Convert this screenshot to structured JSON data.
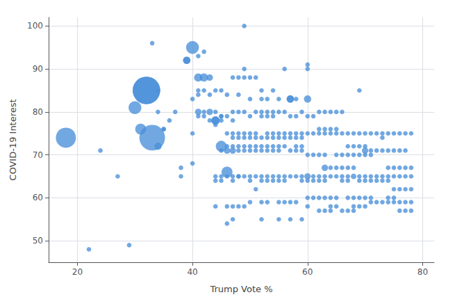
{
  "chart_data": {
    "type": "scatter",
    "xlabel": "Trump Vote %",
    "ylabel": "COVID-19 Interest",
    "xlim": [
      15,
      82
    ],
    "ylim": [
      45,
      102
    ],
    "xticks": [
      20,
      40,
      60,
      80
    ],
    "yticks": [
      50,
      60,
      70,
      80,
      90,
      100
    ],
    "grid": true,
    "color": "#4a90d9",
    "x": [
      18,
      22,
      24,
      27,
      29,
      30,
      31,
      32,
      32,
      33,
      33,
      34,
      34,
      34,
      35,
      35,
      36,
      37,
      38,
      38,
      39,
      39,
      40,
      40,
      40,
      40,
      41,
      41,
      41,
      41,
      41,
      41,
      42,
      42,
      42,
      42,
      42,
      43,
      43,
      43,
      43,
      44,
      44,
      44,
      44,
      44,
      44,
      44,
      44,
      45,
      45,
      45,
      45,
      45,
      45,
      45,
      45,
      46,
      46,
      46,
      46,
      46,
      46,
      46,
      46,
      46,
      47,
      47,
      47,
      47,
      47,
      47,
      47,
      47,
      47,
      47,
      47,
      48,
      48,
      48,
      48,
      48,
      48,
      48,
      48,
      48,
      48,
      49,
      49,
      49,
      49,
      49,
      49,
      49,
      49,
      49,
      49,
      50,
      50,
      50,
      50,
      50,
      50,
      50,
      50,
      50,
      50,
      51,
      51,
      51,
      51,
      51,
      51,
      51,
      51,
      52,
      52,
      52,
      52,
      52,
      52,
      52,
      52,
      52,
      52,
      52,
      53,
      53,
      53,
      53,
      53,
      53,
      53,
      53,
      53,
      53,
      54,
      54,
      54,
      54,
      54,
      54,
      54,
      54,
      54,
      55,
      55,
      55,
      55,
      55,
      55,
      55,
      55,
      55,
      55,
      56,
      56,
      56,
      56,
      56,
      56,
      56,
      56,
      57,
      57,
      57,
      57,
      57,
      57,
      57,
      57,
      57,
      58,
      58,
      58,
      58,
      58,
      58,
      58,
      58,
      59,
      59,
      59,
      59,
      59,
      59,
      59,
      59,
      60,
      60,
      60,
      60,
      60,
      60,
      60,
      60,
      60,
      60,
      61,
      61,
      61,
      61,
      61,
      61,
      62,
      62,
      62,
      62,
      62,
      62,
      62,
      62,
      63,
      63,
      63,
      63,
      63,
      63,
      63,
      63,
      63,
      64,
      64,
      64,
      64,
      64,
      64,
      64,
      64,
      65,
      65,
      65,
      65,
      65,
      65,
      65,
      65,
      66,
      66,
      66,
      66,
      66,
      66,
      66,
      67,
      67,
      67,
      67,
      67,
      67,
      67,
      67,
      68,
      68,
      68,
      68,
      68,
      68,
      68,
      68,
      69,
      69,
      69,
      69,
      69,
      69,
      69,
      69,
      70,
      70,
      70,
      70,
      70,
      70,
      70,
      70,
      71,
      71,
      71,
      71,
      71,
      71,
      71,
      72,
      72,
      72,
      72,
      72,
      73,
      73,
      73,
      73,
      73,
      73,
      74,
      74,
      74,
      74,
      74,
      74,
      74,
      75,
      75,
      75,
      75,
      75,
      75,
      75,
      76,
      76,
      76,
      76,
      76,
      76,
      76,
      77,
      77,
      77,
      77,
      77,
      77,
      77,
      78,
      78,
      78,
      78,
      78,
      78
    ],
    "values": [
      74,
      48,
      71,
      65,
      49,
      81,
      76,
      85,
      85,
      74,
      96,
      85,
      80,
      72,
      76,
      76,
      78,
      80,
      67,
      65,
      92,
      92,
      95,
      83,
      75,
      68,
      93,
      88,
      85,
      84,
      80,
      79,
      94,
      88,
      85,
      80,
      79,
      88,
      84,
      80,
      78,
      85,
      80,
      78,
      78,
      77,
      65,
      64,
      58,
      85,
      79,
      79,
      78,
      72,
      71,
      65,
      64,
      84,
      79,
      75,
      72,
      71,
      66,
      65,
      58,
      54,
      88,
      80,
      78,
      75,
      74,
      72,
      71,
      65,
      64,
      58,
      55,
      88,
      84,
      80,
      75,
      74,
      72,
      71,
      65,
      65,
      58,
      100,
      90,
      88,
      80,
      75,
      74,
      72,
      71,
      65,
      58,
      88,
      83,
      79,
      75,
      74,
      72,
      71,
      65,
      64,
      59,
      88,
      80,
      75,
      74,
      72,
      71,
      65,
      62,
      83,
      80,
      79,
      85,
      74,
      72,
      71,
      65,
      64,
      59,
      55,
      83,
      80,
      79,
      75,
      74,
      72,
      71,
      65,
      64,
      59,
      85,
      80,
      79,
      75,
      74,
      72,
      71,
      65,
      64,
      83,
      80,
      75,
      74,
      72,
      71,
      65,
      64,
      59,
      55,
      90,
      80,
      75,
      74,
      72,
      65,
      64,
      59,
      83,
      83,
      79,
      75,
      74,
      71,
      65,
      59,
      55,
      83,
      79,
      75,
      74,
      72,
      71,
      65,
      59,
      80,
      75,
      74,
      72,
      71,
      65,
      64,
      55,
      91,
      90,
      83,
      79,
      75,
      70,
      65,
      64,
      60,
      58,
      79,
      75,
      70,
      65,
      64,
      60,
      80,
      76,
      75,
      70,
      65,
      64,
      60,
      57,
      80,
      76,
      75,
      70,
      67,
      65,
      64,
      60,
      57,
      80,
      76,
      75,
      67,
      65,
      60,
      58,
      57,
      80,
      76,
      75,
      70,
      67,
      65,
      60,
      58,
      80,
      75,
      70,
      67,
      65,
      64,
      57,
      75,
      72,
      70,
      67,
      65,
      64,
      60,
      57,
      75,
      72,
      70,
      67,
      65,
      60,
      58,
      57,
      85,
      75,
      72,
      70,
      65,
      64,
      60,
      58,
      75,
      72,
      71,
      70,
      65,
      64,
      60,
      58,
      75,
      71,
      70,
      65,
      64,
      60,
      59,
      75,
      71,
      65,
      64,
      59,
      75,
      74,
      71,
      65,
      64,
      59,
      75,
      71,
      67,
      65,
      64,
      60,
      59,
      75,
      71,
      67,
      65,
      62,
      60,
      59,
      75,
      71,
      67,
      65,
      62,
      59,
      57,
      75,
      71,
      67,
      65,
      62,
      59,
      57,
      75,
      67,
      65,
      62,
      59,
      57
    ],
    "sizes": [
      22,
      5,
      5,
      5,
      5,
      14,
      12,
      30,
      30,
      28,
      5,
      5,
      5,
      8,
      5,
      5,
      5,
      5,
      5,
      5,
      8,
      8,
      14,
      5,
      5,
      5,
      5,
      9,
      5,
      5,
      7,
      5,
      5,
      9,
      5,
      5,
      5,
      7,
      5,
      7,
      5,
      5,
      5,
      9,
      9,
      5,
      5,
      5,
      5,
      5,
      5,
      5,
      5,
      12,
      5,
      5,
      5,
      5,
      5,
      5,
      5,
      7,
      12,
      5,
      5,
      5,
      5,
      5,
      5,
      5,
      5,
      5,
      7,
      5,
      5,
      5,
      5,
      5,
      5,
      5,
      5,
      5,
      5,
      5,
      5,
      5,
      5,
      5,
      5,
      5,
      5,
      5,
      5,
      5,
      5,
      5,
      5,
      5,
      5,
      5,
      5,
      5,
      5,
      5,
      5,
      5,
      5,
      5,
      5,
      5,
      5,
      5,
      5,
      5,
      5,
      5,
      5,
      5,
      5,
      5,
      5,
      5,
      5,
      5,
      5,
      5,
      5,
      5,
      5,
      5,
      5,
      5,
      5,
      5,
      5,
      5,
      5,
      5,
      5,
      5,
      5,
      5,
      5,
      5,
      5,
      5,
      5,
      5,
      5,
      5,
      5,
      5,
      5,
      5,
      5,
      5,
      5,
      5,
      5,
      5,
      5,
      5,
      5,
      8,
      8,
      5,
      5,
      5,
      5,
      5,
      5,
      5,
      5,
      5,
      5,
      5,
      5,
      5,
      5,
      5,
      5,
      5,
      5,
      5,
      5,
      5,
      5,
      5,
      5,
      5,
      8,
      5,
      5,
      5,
      7,
      5,
      5,
      5,
      5,
      5,
      5,
      5,
      5,
      5,
      5,
      5,
      5,
      5,
      5,
      5,
      5,
      5,
      5,
      5,
      5,
      5,
      7,
      5,
      5,
      5,
      5,
      5,
      5,
      5,
      5,
      5,
      5,
      5,
      5,
      5,
      5,
      5,
      5,
      5,
      5,
      5,
      5,
      5,
      5,
      5,
      5,
      5,
      5,
      5,
      5,
      5,
      5,
      5,
      5,
      5,
      5,
      5,
      5,
      5,
      5,
      5,
      6,
      5,
      5,
      5,
      5,
      5,
      5,
      5,
      5,
      5,
      5,
      5,
      5,
      5,
      7,
      5,
      5,
      5,
      5,
      5,
      5,
      5,
      5,
      5,
      5,
      5,
      5,
      5,
      5,
      5,
      5,
      5,
      5,
      5,
      5,
      5,
      5,
      5,
      5,
      5,
      5,
      5,
      5,
      5,
      5,
      5,
      5,
      5,
      5,
      5,
      5,
      5,
      5,
      5,
      5,
      5,
      5,
      5,
      5,
      5,
      5,
      5,
      5,
      5,
      5,
      5,
      5,
      5,
      5,
      5,
      5,
      5
    ]
  }
}
